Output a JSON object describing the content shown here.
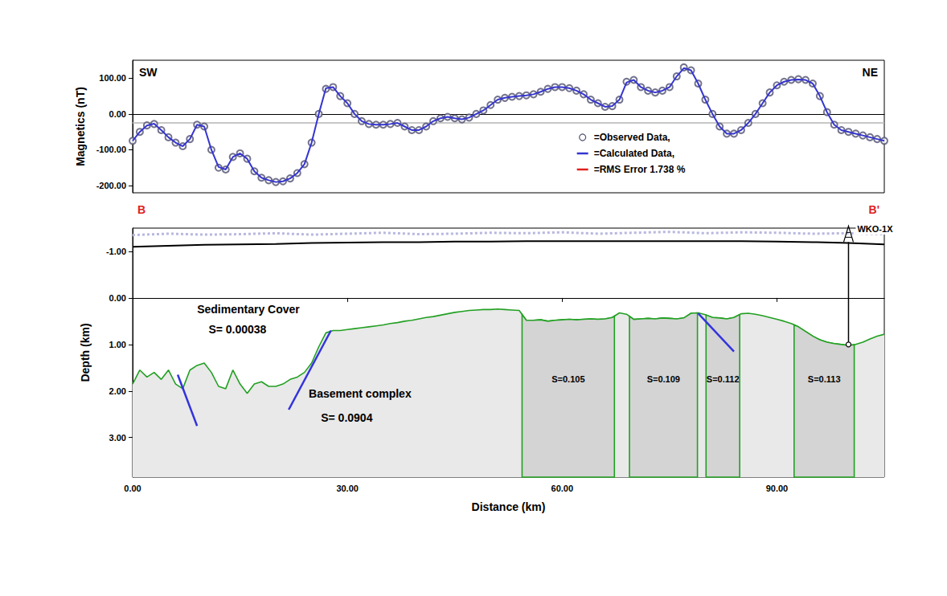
{
  "chart_data": [
    {
      "type": "line",
      "ylabel": "Magnetics (nT)",
      "xlim": [
        0,
        105
      ],
      "ylim": [
        -220,
        150
      ],
      "yticks": [
        {
          "value": -200,
          "label": "-200.00"
        },
        {
          "value": -100,
          "label": "-100.00"
        },
        {
          "value": 0,
          "label": "0.00"
        },
        {
          "value": 100,
          "label": "100.00"
        }
      ],
      "tick_labels": "y",
      "grid": false,
      "legend": "right",
      "annotations": [
        {
          "text": "SW",
          "color": "#000000"
        },
        {
          "text": "NE",
          "color": "#000000"
        },
        {
          "text": "B",
          "color": "#e02020"
        },
        {
          "text": "B'",
          "color": "#e02020"
        }
      ],
      "x": [
        0,
        1,
        2,
        3,
        4,
        5,
        6,
        7,
        8,
        9,
        10,
        11,
        12,
        13,
        14,
        15,
        16,
        17,
        18,
        19,
        20,
        21,
        22,
        23,
        24,
        25,
        26,
        27,
        28,
        29,
        30,
        31,
        32,
        33,
        34,
        35,
        36,
        37,
        38,
        39,
        40,
        41,
        42,
        43,
        44,
        45,
        46,
        47,
        48,
        49,
        50,
        51,
        52,
        53,
        54,
        55,
        56,
        57,
        58,
        59,
        60,
        61,
        62,
        63,
        64,
        65,
        66,
        67,
        68,
        69,
        70,
        71,
        72,
        73,
        74,
        75,
        76,
        77,
        78,
        79,
        80,
        81,
        82,
        83,
        84,
        85,
        86,
        87,
        88,
        89,
        90,
        91,
        92,
        93,
        94,
        95,
        96,
        97,
        98,
        99,
        100,
        101,
        102,
        103,
        104,
        105
      ],
      "series": [
        {
          "name": "=Observed Data,",
          "type": "scatter",
          "marker": "circle",
          "color": "#505070",
          "values": [
            -75,
            -50,
            -32,
            -28,
            -45,
            -65,
            -80,
            -90,
            -70,
            -30,
            -35,
            -100,
            -150,
            -155,
            -120,
            -110,
            -125,
            -160,
            -178,
            -185,
            -190,
            -188,
            -180,
            -165,
            -140,
            -80,
            0,
            70,
            75,
            50,
            30,
            0,
            -20,
            -28,
            -30,
            -30,
            -28,
            -25,
            -35,
            -45,
            -45,
            -35,
            -20,
            -12,
            -8,
            -12,
            -15,
            -10,
            0,
            10,
            25,
            40,
            45,
            48,
            50,
            52,
            55,
            62,
            70,
            75,
            75,
            72,
            65,
            55,
            40,
            30,
            20,
            22,
            40,
            90,
            95,
            75,
            65,
            60,
            65,
            75,
            105,
            130,
            122,
            85,
            40,
            0,
            -35,
            -55,
            -55,
            -45,
            -25,
            0,
            30,
            60,
            80,
            90,
            95,
            97,
            95,
            85,
            50,
            5,
            -30,
            -45,
            -50,
            -55,
            -60,
            -65,
            -70,
            -75
          ]
        },
        {
          "name": "=Calculated Data,",
          "type": "line",
          "line_style": "solid",
          "color": "#3535d0",
          "values": [
            -75,
            -50,
            -32,
            -27,
            -45,
            -65,
            -80,
            -90,
            -70,
            -30,
            -35,
            -100,
            -148,
            -155,
            -120,
            -110,
            -125,
            -160,
            -178,
            -185,
            -190,
            -188,
            -180,
            -165,
            -140,
            -80,
            0,
            72,
            75,
            50,
            30,
            0,
            -20,
            -28,
            -30,
            -30,
            -28,
            -25,
            -35,
            -45,
            -45,
            -35,
            -20,
            -12,
            -8,
            -12,
            -15,
            -10,
            0,
            10,
            25,
            40,
            45,
            48,
            50,
            52,
            55,
            62,
            70,
            75,
            75,
            72,
            65,
            55,
            40,
            30,
            20,
            22,
            40,
            88,
            95,
            75,
            65,
            60,
            65,
            75,
            105,
            128,
            122,
            85,
            40,
            0,
            -35,
            -55,
            -55,
            -45,
            -25,
            0,
            30,
            60,
            80,
            90,
            95,
            96,
            95,
            85,
            50,
            5,
            -30,
            -45,
            -50,
            -55,
            -60,
            -65,
            -70,
            -75
          ]
        }
      ],
      "rms_error": {
        "name": "=RMS Error 1.738 %",
        "color": "#e02020"
      },
      "error_level": {
        "value": -25,
        "color": "#b4b4b4"
      }
    },
    {
      "type": "section",
      "xlabel": "Distance (km)",
      "ylabel": "Depth (km)",
      "xlim": [
        0,
        105
      ],
      "xticks": [
        {
          "value": 0,
          "label": "0.00"
        },
        {
          "value": 30,
          "label": "30.00"
        },
        {
          "value": 60,
          "label": "60.00"
        },
        {
          "value": 90,
          "label": "90.00"
        }
      ],
      "ylim": [
        -1.5,
        3.85
      ],
      "yticks": [
        {
          "value": -1,
          "label": "-1.00"
        },
        {
          "value": 0,
          "label": "0.00"
        },
        {
          "value": 1,
          "label": "1.00"
        },
        {
          "value": 2,
          "label": "2.00"
        },
        {
          "value": 3,
          "label": "3.00"
        }
      ],
      "grid": false,
      "flight_line": {
        "x": [
          0,
          5,
          10,
          15,
          20,
          25,
          30,
          35,
          40,
          45,
          50,
          55,
          60,
          65,
          70,
          75,
          80,
          85,
          90,
          95,
          100,
          105
        ],
        "values": [
          -1.35,
          -1.38,
          -1.36,
          -1.37,
          -1.39,
          -1.36,
          -1.38,
          -1.4,
          -1.37,
          -1.38,
          -1.4,
          -1.39,
          -1.41,
          -1.38,
          -1.4,
          -1.42,
          -1.39,
          -1.41,
          -1.4,
          -1.38,
          -1.39,
          -1.37
        ],
        "color": "#b8b8e0",
        "line_style": "dotted"
      },
      "topography": {
        "x": [
          0,
          5,
          10,
          15,
          20,
          25,
          30,
          35,
          40,
          45,
          50,
          55,
          60,
          65,
          70,
          75,
          80,
          85,
          90,
          95,
          100,
          105
        ],
        "values": [
          -1.1,
          -1.12,
          -1.14,
          -1.15,
          -1.16,
          -1.18,
          -1.19,
          -1.2,
          -1.2,
          -1.21,
          -1.21,
          -1.22,
          -1.22,
          -1.22,
          -1.22,
          -1.22,
          -1.22,
          -1.22,
          -1.21,
          -1.2,
          -1.18,
          -1.15
        ],
        "color": "#000000",
        "line_style": "solid"
      },
      "basement": {
        "x": [
          0,
          1,
          2,
          3,
          4,
          5,
          6,
          7,
          8,
          9,
          10,
          11,
          12,
          13,
          14,
          15,
          16,
          17,
          18,
          19,
          20,
          21,
          22,
          23,
          24,
          25,
          26,
          27,
          28,
          29,
          30,
          31,
          32,
          33,
          34,
          35,
          36,
          37,
          38,
          39,
          40,
          41,
          42,
          43,
          44,
          45,
          46,
          47,
          48,
          49,
          50,
          51,
          52,
          53,
          54,
          55,
          56,
          57,
          58,
          59,
          60,
          61,
          62,
          63,
          64,
          65,
          66,
          67,
          68,
          69,
          70,
          71,
          72,
          73,
          74,
          75,
          76,
          77,
          78,
          79,
          80,
          81,
          82,
          83,
          84,
          85,
          86,
          87,
          88,
          89,
          90,
          91,
          92,
          93,
          94,
          95,
          96,
          97,
          98,
          99,
          100,
          101,
          102,
          103,
          104,
          105
        ],
        "values": [
          1.85,
          1.55,
          1.7,
          1.6,
          1.75,
          1.55,
          1.85,
          1.95,
          1.55,
          1.45,
          1.4,
          1.6,
          1.9,
          1.95,
          1.55,
          1.85,
          2.05,
          1.85,
          1.8,
          1.9,
          1.9,
          1.85,
          1.75,
          1.7,
          1.6,
          1.4,
          1.05,
          0.75,
          0.7,
          0.7,
          0.68,
          0.66,
          0.64,
          0.62,
          0.6,
          0.58,
          0.55,
          0.53,
          0.5,
          0.48,
          0.45,
          0.42,
          0.4,
          0.37,
          0.34,
          0.31,
          0.29,
          0.27,
          0.26,
          0.25,
          0.25,
          0.24,
          0.25,
          0.26,
          0.27,
          0.48,
          0.48,
          0.47,
          0.5,
          0.48,
          0.47,
          0.46,
          0.47,
          0.46,
          0.45,
          0.46,
          0.45,
          0.42,
          0.32,
          0.35,
          0.46,
          0.45,
          0.44,
          0.45,
          0.43,
          0.44,
          0.45,
          0.43,
          0.33,
          0.32,
          0.36,
          0.42,
          0.43,
          0.45,
          0.42,
          0.34,
          0.33,
          0.35,
          0.38,
          0.42,
          0.46,
          0.5,
          0.55,
          0.62,
          0.72,
          0.82,
          0.9,
          0.95,
          0.98,
          1.0,
          1.02,
          1.0,
          0.95,
          0.88,
          0.82,
          0.78
        ],
        "color": "#22a022"
      },
      "layers": [
        {
          "name": "Sedimentary Cover",
          "label": "S= 0.00038"
        },
        {
          "name": "Basement complex",
          "label": "S= 0.0904"
        }
      ],
      "blocks": [
        {
          "x": [
            54.4,
            67.3
          ],
          "label": "S=0.105"
        },
        {
          "x": [
            69.4,
            78.9
          ],
          "label": "S=0.109"
        },
        {
          "x": [
            80.1,
            84.8
          ],
          "label": "S=0.112"
        },
        {
          "x": [
            92.4,
            100.8
          ],
          "label": "S=0.113"
        }
      ],
      "faults": {
        "color": "#3333dd",
        "lines": [
          {
            "x": [
              6.3,
              9
            ],
            "y": [
              1.65,
              2.75
            ]
          },
          {
            "x": [
              21.8,
              27.7
            ],
            "y": [
              2.4,
              0.7
            ]
          },
          {
            "x": [
              79,
              84
            ],
            "y": [
              0.33,
              1.15
            ]
          }
        ]
      },
      "well": {
        "name": "WKO-1X",
        "x": 100,
        "y": [
          -1.2,
          1.0
        ]
      }
    }
  ]
}
